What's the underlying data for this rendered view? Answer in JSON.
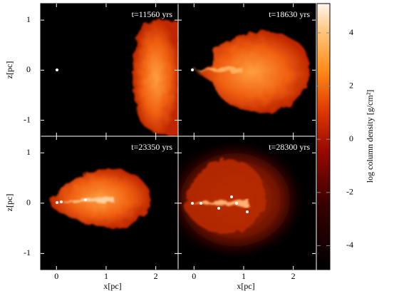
{
  "chart_data": {
    "type": "image",
    "panels": [
      {
        "annotation": "t=11560 yrs"
      },
      {
        "annotation": "t=18630 yrs"
      },
      {
        "annotation": "t=23350 yrs"
      },
      {
        "annotation": "t=28300 yrs"
      }
    ],
    "xlabel": "x[pc]",
    "ylabel": "z[pc]",
    "xlim": [
      -0.32,
      2.45
    ],
    "xticks": [
      0,
      1,
      2
    ],
    "ylim": [
      -1.32,
      1.33
    ],
    "yticks": [
      -1,
      0,
      1
    ],
    "colorbar": {
      "label": "log column density [g/cm²]",
      "lim": [
        -4.9,
        5.1
      ],
      "ticks": [
        -4,
        -2,
        0,
        2,
        4
      ]
    }
  }
}
